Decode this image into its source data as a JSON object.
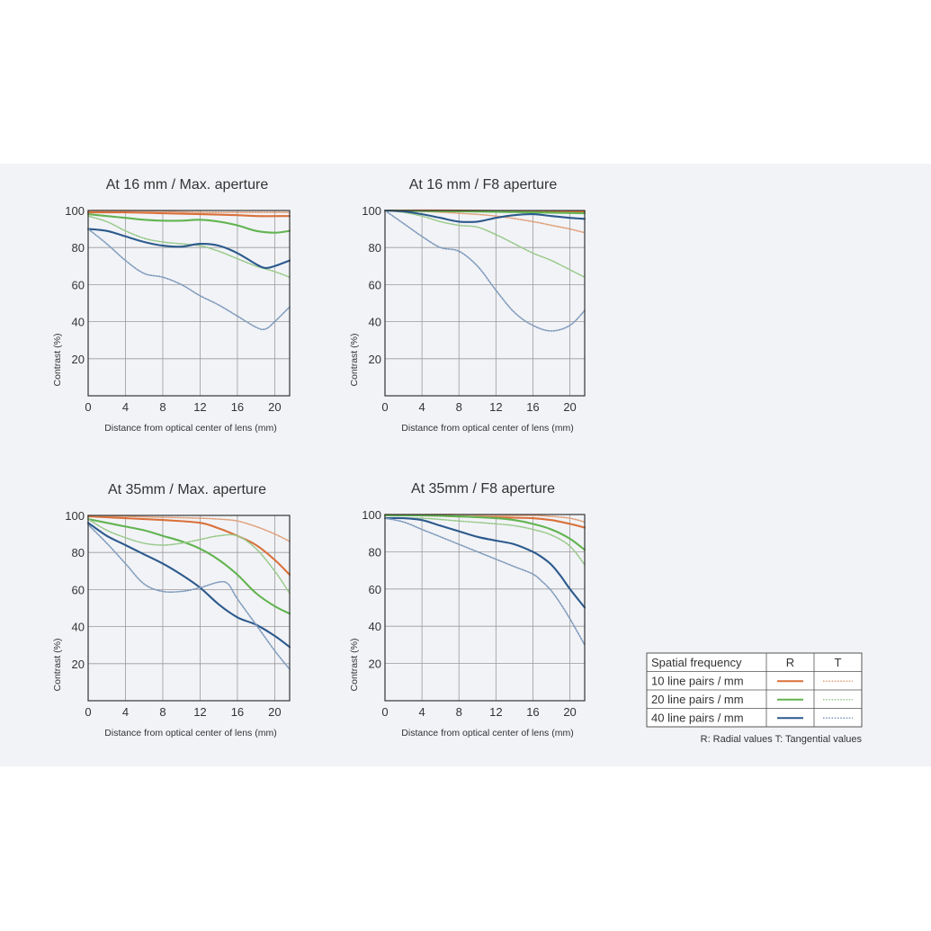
{
  "colors": {
    "mtf10": "#d9703a",
    "mtf20": "#62b451",
    "mtf40": "#2c5a8d",
    "mtf10_t": "#e0a07a",
    "mtf20_t": "#98c98a",
    "mtf40_t": "#7f9bbc",
    "grid": "#9a9a9a",
    "frame": "#333333",
    "text": "#333333"
  },
  "legend": {
    "header": "Spatial frequency",
    "col_r": "R",
    "col_t": "T",
    "rows": [
      "10 line pairs / mm",
      "20 line pairs / mm",
      "40 line pairs / mm"
    ],
    "note": "R: Radial values  T: Tangential values"
  },
  "chart_data": [
    {
      "type": "line",
      "title": "At 16 mm / Max. aperture",
      "xlabel": "Distance from optical center of lens (mm)",
      "ylabel": "Contrast (%)",
      "xticks": [
        0,
        4,
        8,
        12,
        16,
        20
      ],
      "yticks": [
        20,
        40,
        60,
        80,
        100
      ],
      "xlim": [
        0,
        21.6
      ],
      "ylim": [
        0,
        100
      ],
      "grid": true,
      "series": [
        {
          "name": "10 line pairs / mm",
          "kind": "R",
          "x": [
            0,
            4,
            8,
            12,
            16,
            18,
            21.6
          ],
          "y": [
            99,
            99,
            98.5,
            98,
            97.5,
            97,
            97
          ]
        },
        {
          "name": "10 line pairs / mm",
          "kind": "T",
          "x": [
            0,
            4,
            8,
            12,
            16,
            18,
            21.6
          ],
          "y": [
            100,
            100,
            99.5,
            99,
            99,
            99,
            99
          ]
        },
        {
          "name": "20 line pairs / mm",
          "kind": "R",
          "x": [
            0,
            2,
            4,
            6,
            8,
            10,
            12,
            14,
            16,
            18,
            20,
            21.6
          ],
          "y": [
            98,
            97,
            96,
            95,
            94.5,
            94.5,
            95,
            94,
            92,
            89,
            88,
            89
          ]
        },
        {
          "name": "20 line pairs / mm",
          "kind": "T",
          "x": [
            0,
            2,
            4,
            6,
            8,
            10,
            12,
            14,
            16,
            18,
            20,
            21.6
          ],
          "y": [
            97,
            94,
            89,
            85,
            83,
            82,
            81,
            78,
            74,
            70,
            67,
            64
          ]
        },
        {
          "name": "40 line pairs / mm",
          "kind": "R",
          "x": [
            0,
            2,
            4,
            6,
            8,
            10,
            12,
            14,
            16,
            18,
            19,
            20,
            21.6
          ],
          "y": [
            90,
            89,
            86,
            83,
            81,
            80.5,
            82,
            81,
            77,
            71,
            69,
            70,
            73
          ]
        },
        {
          "name": "40 line pairs / mm",
          "kind": "T",
          "x": [
            0,
            2,
            4,
            6,
            8,
            10,
            12,
            14,
            16,
            18,
            19,
            20,
            21.6
          ],
          "y": [
            90,
            82,
            73,
            66,
            64,
            60,
            54,
            49,
            43,
            37,
            36,
            40,
            48
          ]
        }
      ]
    },
    {
      "type": "line",
      "title": "At 16 mm / F8 aperture",
      "xlabel": "Distance from optical center of lens (mm)",
      "ylabel": "Contrast (%)",
      "xticks": [
        0,
        4,
        8,
        12,
        16,
        20
      ],
      "yticks": [
        20,
        40,
        60,
        80,
        100
      ],
      "xlim": [
        0,
        21.6
      ],
      "ylim": [
        0,
        100
      ],
      "grid": true,
      "series": [
        {
          "name": "10 line pairs / mm",
          "kind": "R",
          "x": [
            0,
            8,
            16,
            21.6
          ],
          "y": [
            100,
            100,
            99.5,
            99.5
          ]
        },
        {
          "name": "10 line pairs / mm",
          "kind": "T",
          "x": [
            0,
            4,
            8,
            12,
            16,
            18,
            20,
            21.6
          ],
          "y": [
            100,
            99.5,
            98.5,
            97,
            94,
            92,
            90,
            88
          ]
        },
        {
          "name": "20 line pairs / mm",
          "kind": "R",
          "x": [
            0,
            8,
            16,
            21.6
          ],
          "y": [
            100,
            99.5,
            99,
            98.5
          ]
        },
        {
          "name": "20 line pairs / mm",
          "kind": "T",
          "x": [
            0,
            2,
            4,
            6,
            8,
            10,
            12,
            14,
            16,
            18,
            20,
            21.6
          ],
          "y": [
            100,
            99,
            97,
            94,
            92,
            91,
            87,
            82,
            77,
            73,
            68,
            64
          ]
        },
        {
          "name": "40 line pairs / mm",
          "kind": "R",
          "x": [
            0,
            2,
            4,
            6,
            8,
            10,
            12,
            14,
            16,
            18,
            20,
            21.6
          ],
          "y": [
            100,
            99.5,
            98,
            96,
            94,
            94,
            96,
            97.5,
            98,
            97,
            96,
            95.5
          ]
        },
        {
          "name": "40 line pairs / mm",
          "kind": "T",
          "x": [
            0,
            2,
            4,
            6,
            8,
            10,
            12,
            14,
            16,
            18,
            20,
            21.6
          ],
          "y": [
            100,
            93,
            86,
            80,
            78,
            70,
            57,
            45,
            38,
            35,
            38,
            46
          ]
        }
      ]
    },
    {
      "type": "line",
      "title": "At 35mm / Max. aperture",
      "xlabel": "Distance from optical center of lens (mm)",
      "ylabel": "Contrast (%)",
      "xticks": [
        0,
        4,
        8,
        12,
        16,
        20
      ],
      "yticks": [
        20,
        40,
        60,
        80,
        100
      ],
      "xlim": [
        0,
        21.6
      ],
      "ylim": [
        0,
        100
      ],
      "grid": true,
      "series": [
        {
          "name": "10 line pairs / mm",
          "kind": "R",
          "x": [
            0,
            4,
            8,
            12,
            14,
            16,
            18,
            20,
            21.6
          ],
          "y": [
            99.5,
            98.5,
            97.5,
            96,
            93,
            89,
            84,
            76,
            68
          ]
        },
        {
          "name": "10 line pairs / mm",
          "kind": "T",
          "x": [
            0,
            4,
            8,
            12,
            14,
            16,
            18,
            20,
            21.6
          ],
          "y": [
            100,
            99.5,
            99,
            98.5,
            98,
            97,
            94,
            90,
            86
          ]
        },
        {
          "name": "20 line pairs / mm",
          "kind": "R",
          "x": [
            0,
            2,
            4,
            6,
            8,
            10,
            12,
            14,
            16,
            18,
            20,
            21.6
          ],
          "y": [
            98,
            96,
            94,
            92,
            89,
            86,
            82,
            76,
            68,
            58,
            51,
            47
          ]
        },
        {
          "name": "20 line pairs / mm",
          "kind": "T",
          "x": [
            0,
            2,
            4,
            6,
            8,
            10,
            12,
            14,
            16,
            18,
            20,
            21.6
          ],
          "y": [
            98,
            92,
            88,
            85,
            84,
            85,
            87,
            89,
            89,
            82,
            70,
            58
          ]
        },
        {
          "name": "40 line pairs / mm",
          "kind": "R",
          "x": [
            0,
            2,
            4,
            6,
            8,
            10,
            12,
            14,
            16,
            18,
            20,
            21.6
          ],
          "y": [
            96,
            89,
            84,
            79,
            74,
            68,
            61,
            52,
            45,
            41,
            35,
            29
          ]
        },
        {
          "name": "40 line pairs / mm",
          "kind": "T",
          "x": [
            0,
            2,
            4,
            6,
            8,
            10,
            12,
            14,
            15,
            16,
            18,
            20,
            21.6
          ],
          "y": [
            95,
            85,
            74,
            63,
            59,
            59,
            61,
            64,
            63,
            55,
            41,
            27,
            17
          ]
        }
      ]
    },
    {
      "type": "line",
      "title": "At 35mm / F8 aperture",
      "xlabel": "Distance from optical center of lens (mm)",
      "ylabel": "Contrast (%)",
      "xticks": [
        0,
        4,
        8,
        12,
        16,
        20
      ],
      "yticks": [
        20,
        40,
        60,
        80,
        100
      ],
      "xlim": [
        0,
        21.6
      ],
      "ylim": [
        0,
        100
      ],
      "grid": true,
      "series": [
        {
          "name": "10 line pairs / mm",
          "kind": "R",
          "x": [
            0,
            4,
            8,
            12,
            16,
            18,
            20,
            21.6
          ],
          "y": [
            99.5,
            99.5,
            99,
            98.5,
            98,
            97,
            95,
            93
          ]
        },
        {
          "name": "10 line pairs / mm",
          "kind": "T",
          "x": [
            0,
            4,
            8,
            12,
            16,
            18,
            20,
            21.6
          ],
          "y": [
            100,
            100,
            100,
            99.5,
            99.5,
            99,
            98,
            96
          ]
        },
        {
          "name": "20 line pairs / mm",
          "kind": "R",
          "x": [
            0,
            4,
            8,
            12,
            14,
            16,
            18,
            20,
            21.6
          ],
          "y": [
            99.5,
            99.5,
            99,
            98,
            97,
            95,
            92,
            87,
            81
          ]
        },
        {
          "name": "20 line pairs / mm",
          "kind": "T",
          "x": [
            0,
            4,
            8,
            12,
            14,
            16,
            18,
            20,
            21.6
          ],
          "y": [
            98,
            98,
            96.5,
            95,
            94,
            92,
            89,
            83,
            73
          ]
        },
        {
          "name": "40 line pairs / mm",
          "kind": "R",
          "x": [
            0,
            2,
            4,
            6,
            8,
            10,
            12,
            14,
            16,
            17,
            18,
            19,
            20,
            21.6
          ],
          "y": [
            98,
            98,
            97,
            94,
            91,
            88,
            86,
            84,
            80,
            77,
            73,
            67,
            60,
            50
          ]
        },
        {
          "name": "40 line pairs / mm",
          "kind": "T",
          "x": [
            0,
            2,
            4,
            6,
            8,
            10,
            12,
            14,
            16,
            17,
            18,
            19,
            20,
            21.6
          ],
          "y": [
            98,
            96,
            92,
            88,
            84,
            80,
            76,
            72,
            68,
            64,
            59,
            52,
            44,
            30
          ]
        }
      ]
    }
  ]
}
